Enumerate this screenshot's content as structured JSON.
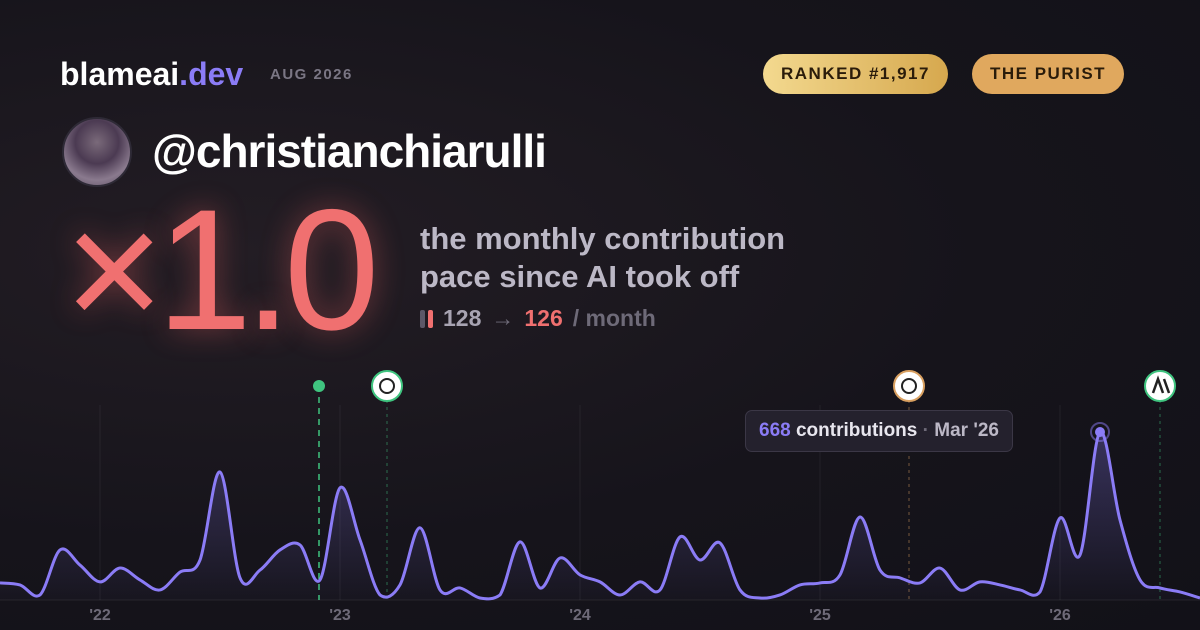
{
  "header": {
    "brand": "blameai",
    "brand_suffix": ".dev",
    "period": "AUG 2026",
    "rank_badge": "RANKED #1,917",
    "type_badge": "THE PURIST"
  },
  "profile": {
    "handle": "@christianchiarulli"
  },
  "stat": {
    "multiplier": "×1.0",
    "description": [
      "the monthly contribution",
      "pace since AI took off"
    ],
    "before": "128",
    "arrow": "→",
    "after": "126",
    "unit": "/ month"
  },
  "tooltip": {
    "unit": "contributions",
    "separator": "·",
    "date": "Mar '26"
  },
  "chart_data": {
    "type": "line",
    "color": "#8b7cf6",
    "categories": [
      null,
      null,
      null,
      null,
      null,
      "'22",
      null,
      null,
      null,
      null,
      null,
      null,
      null,
      null,
      null,
      null,
      null,
      "'23",
      null,
      null,
      null,
      null,
      null,
      null,
      null,
      null,
      null,
      null,
      null,
      "'24",
      null,
      null,
      null,
      null,
      null,
      null,
      null,
      null,
      null,
      null,
      null,
      "'25",
      null,
      null,
      null,
      null,
      null,
      null,
      null,
      null,
      null,
      null,
      null,
      "'26",
      null,
      null,
      null,
      null,
      null,
      null,
      null
    ],
    "values": [
      68,
      60,
      20,
      199,
      139,
      72,
      127,
      80,
      40,
      111,
      159,
      509,
      88,
      119,
      199,
      219,
      80,
      446,
      239,
      20,
      60,
      287,
      40,
      48,
      8,
      20,
      231,
      48,
      167,
      100,
      72,
      20,
      72,
      40,
      251,
      159,
      227,
      40,
      8,
      20,
      60,
      68,
      100,
      330,
      119,
      88,
      68,
      127,
      40,
      72,
      60,
      40,
      32,
      326,
      179,
      668,
      318,
      80,
      48,
      32,
      8
    ]
  }
}
